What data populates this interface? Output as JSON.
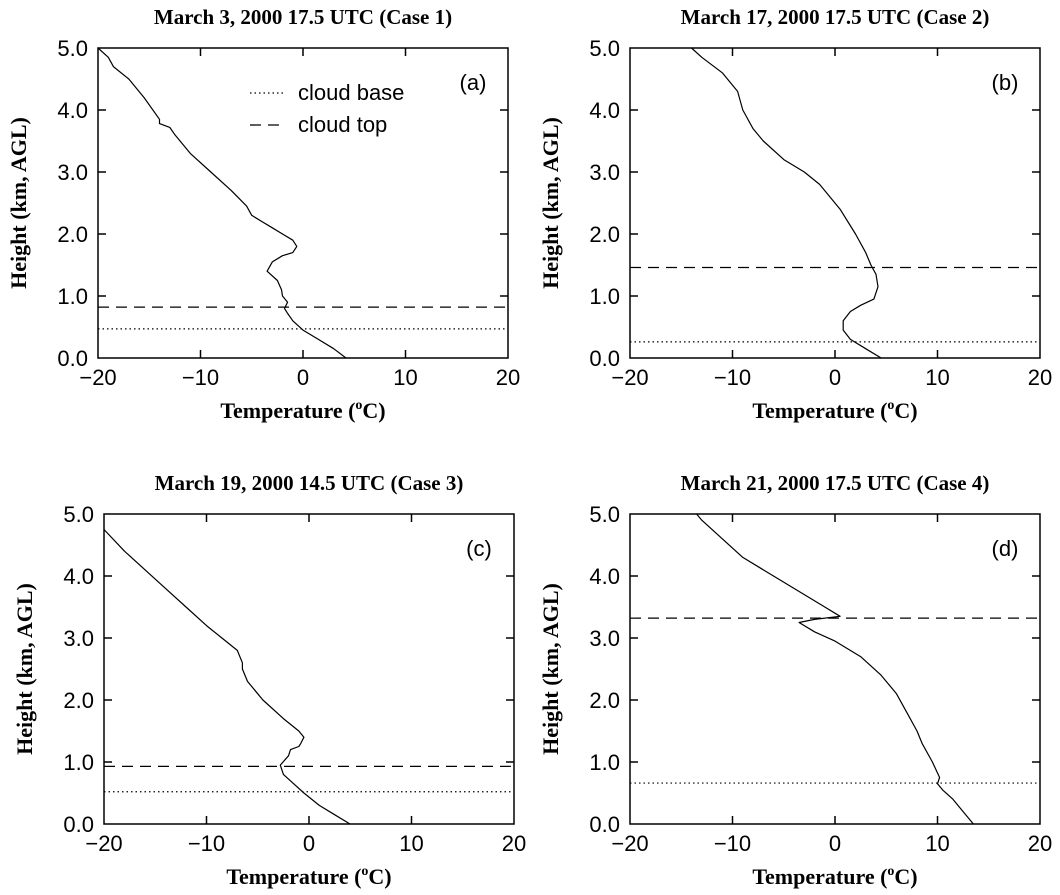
{
  "chart_data": [
    {
      "type": "line",
      "panel_label": "(a)",
      "title": "March 3, 2000 17.5 UTC (Case 1)",
      "xlabel": "Temperature (",
      "xlabel_sup": "o",
      "xlabel_end": "C)",
      "ylabel": "Height (km, AGL)",
      "xlim": [
        -20,
        20
      ],
      "ylim": [
        0,
        5
      ],
      "xticks": [
        "−20",
        "−10",
        "0",
        "10",
        "20"
      ],
      "yticks": [
        "0.0",
        "1.0",
        "2.0",
        "3.0",
        "4.0",
        "5.0"
      ],
      "legend": {
        "position": "top-center",
        "entries": [
          {
            "name": "cloud base",
            "style": "dotted"
          },
          {
            "name": "cloud top",
            "style": "dashed"
          }
        ]
      },
      "cloud_base": 0.47,
      "cloud_top": 0.82,
      "series": [
        {
          "x": [
            4.2,
            3.0,
            1.5,
            0.0,
            -1.0,
            -1.5,
            -1.8,
            -1.5,
            -2.0,
            -2.1,
            -2.5,
            -3.5,
            -3.0,
            -2.0,
            -1.0,
            -0.6,
            -1.0,
            -2.0,
            -3.0,
            -4.0,
            -5.0,
            -5.5,
            -7.0,
            -9.0,
            -11.0,
            -12.5,
            -13.0,
            -14.0,
            -14.0,
            -15.5,
            -17.0,
            -18.5,
            -19.0,
            -20.0
          ],
          "y": [
            0.0,
            0.15,
            0.3,
            0.45,
            0.6,
            0.72,
            0.8,
            0.9,
            1.0,
            1.1,
            1.25,
            1.4,
            1.55,
            1.65,
            1.7,
            1.8,
            1.9,
            2.0,
            2.1,
            2.2,
            2.3,
            2.45,
            2.7,
            3.0,
            3.3,
            3.6,
            3.72,
            3.78,
            3.85,
            4.2,
            4.5,
            4.7,
            4.85,
            5.0
          ]
        }
      ]
    },
    {
      "type": "line",
      "panel_label": "(b)",
      "title": "March 17, 2000 17.5 UTC (Case 2)",
      "xlabel": "Temperature (",
      "xlabel_sup": "o",
      "xlabel_end": "C)",
      "ylabel": "Height (km, AGL)",
      "xlim": [
        -20,
        20
      ],
      "ylim": [
        0,
        5
      ],
      "xticks": [
        "−20",
        "−10",
        "0",
        "10",
        "20"
      ],
      "yticks": [
        "0.0",
        "1.0",
        "2.0",
        "3.0",
        "4.0",
        "5.0"
      ],
      "cloud_base": 0.26,
      "cloud_top": 1.46,
      "series": [
        {
          "x": [
            4.5,
            3.0,
            1.5,
            0.8,
            0.8,
            1.5,
            2.5,
            3.8,
            4.2,
            4.0,
            3.5,
            3.0,
            2.0,
            0.5,
            -1.5,
            -3.0,
            -5.0,
            -7.0,
            -8.0,
            -9.0,
            -9.5,
            -11.0,
            -13.0,
            -14.0
          ],
          "y": [
            0.0,
            0.15,
            0.3,
            0.45,
            0.6,
            0.75,
            0.85,
            0.95,
            1.15,
            1.35,
            1.5,
            1.7,
            2.0,
            2.4,
            2.8,
            3.0,
            3.2,
            3.5,
            3.7,
            4.0,
            4.3,
            4.6,
            4.85,
            5.0
          ]
        }
      ]
    },
    {
      "type": "line",
      "panel_label": "(c)",
      "title": "March 19, 2000 14.5 UTC (Case 3)",
      "xlabel": "Temperature (",
      "xlabel_sup": "o",
      "xlabel_end": "C)",
      "ylabel": "Height (km, AGL)",
      "xlim": [
        -20,
        20
      ],
      "ylim": [
        0,
        5
      ],
      "xticks": [
        "−20",
        "−10",
        "0",
        "10",
        "20"
      ],
      "yticks": [
        "0.0",
        "1.0",
        "2.0",
        "3.0",
        "4.0",
        "5.0"
      ],
      "cloud_base": 0.52,
      "cloud_top": 0.93,
      "series": [
        {
          "x": [
            4.0,
            2.5,
            1.0,
            -0.5,
            -1.5,
            -2.5,
            -2.8,
            -2.0,
            -1.8,
            -1.0,
            -0.8,
            -0.5,
            -1.0,
            -2.5,
            -4.5,
            -6.0,
            -6.5,
            -6.5,
            -7.0,
            -8.5,
            -10.0,
            -12.0,
            -14.0,
            -16.0,
            -18.0,
            -20.0
          ],
          "y": [
            0.0,
            0.15,
            0.3,
            0.5,
            0.65,
            0.8,
            0.95,
            1.1,
            1.2,
            1.25,
            1.3,
            1.4,
            1.5,
            1.7,
            2.0,
            2.3,
            2.5,
            2.6,
            2.8,
            3.0,
            3.2,
            3.5,
            3.8,
            4.1,
            4.4,
            4.75
          ]
        }
      ]
    },
    {
      "type": "line",
      "panel_label": "(d)",
      "title": "March 21, 2000 17.5 UTC (Case 4)",
      "xlabel": "Temperature (",
      "xlabel_sup": "o",
      "xlabel_end": "C)",
      "ylabel": "Height (km, AGL)",
      "xlim": [
        -20,
        20
      ],
      "ylim": [
        0,
        5
      ],
      "xticks": [
        "−20",
        "−10",
        "0",
        "10",
        "20"
      ],
      "yticks": [
        "0.0",
        "1.0",
        "2.0",
        "3.0",
        "4.0",
        "5.0"
      ],
      "cloud_base": 0.66,
      "cloud_top": 3.32,
      "series": [
        {
          "x": [
            13.5,
            12.5,
            11.5,
            10.5,
            10.0,
            10.2,
            9.5,
            8.5,
            8.0,
            7.0,
            6.0,
            4.5,
            2.5,
            0.0,
            -2.0,
            -3.5,
            -2.0,
            0.5,
            -1.0,
            -3.0,
            -6.0,
            -9.0,
            -11.0,
            -13.0,
            -13.5
          ],
          "y": [
            0.0,
            0.2,
            0.4,
            0.55,
            0.65,
            0.75,
            1.0,
            1.3,
            1.5,
            1.8,
            2.1,
            2.4,
            2.7,
            2.95,
            3.1,
            3.25,
            3.3,
            3.35,
            3.5,
            3.7,
            4.0,
            4.3,
            4.6,
            4.9,
            5.0
          ]
        }
      ]
    }
  ]
}
